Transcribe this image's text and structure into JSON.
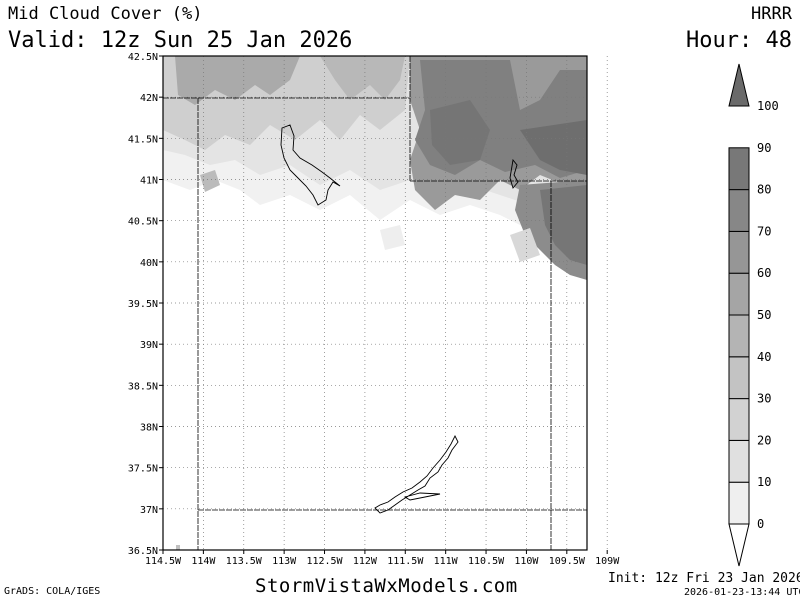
{
  "header": {
    "title": "Mid Cloud Cover (%)",
    "valid": "Valid: 12z Sun 25 Jan 2026",
    "model": "HRRR",
    "hour": "Hour: 48"
  },
  "map": {
    "lat_labels": [
      "42.5N",
      "42N",
      "41.5N",
      "41N",
      "40.5N",
      "40N",
      "39.5N",
      "39N",
      "38.5N",
      "38N",
      "37.5N",
      "37N",
      "36.5N"
    ],
    "lon_labels": [
      "114.5W",
      "114W",
      "113.5W",
      "113W",
      "112.5W",
      "112W",
      "111.5W",
      "111W",
      "110.5W",
      "110W",
      "109.5W",
      "109W"
    ],
    "lat_range": [
      36.5,
      42.5
    ],
    "lon_range": [
      -114.5,
      -109.25
    ]
  },
  "colorbar": {
    "labels": [
      "0",
      "10",
      "20",
      "30",
      "40",
      "50",
      "60",
      "70",
      "80",
      "90",
      "100"
    ],
    "colors": [
      "#ffffff",
      "#efefef",
      "#e0e0e0",
      "#d2d2d2",
      "#c3c3c3",
      "#b4b4b4",
      "#a5a5a5",
      "#969696",
      "#878787",
      "#787878",
      "#6a6a6a"
    ]
  },
  "footer": {
    "credit": "GrADS: COLA/IGES",
    "site": "StormVistaWxModels.com",
    "init": "Init: 12z Fri 23 Jan 2026",
    "stamp": "2026-01-23-13:44 UTC"
  }
}
